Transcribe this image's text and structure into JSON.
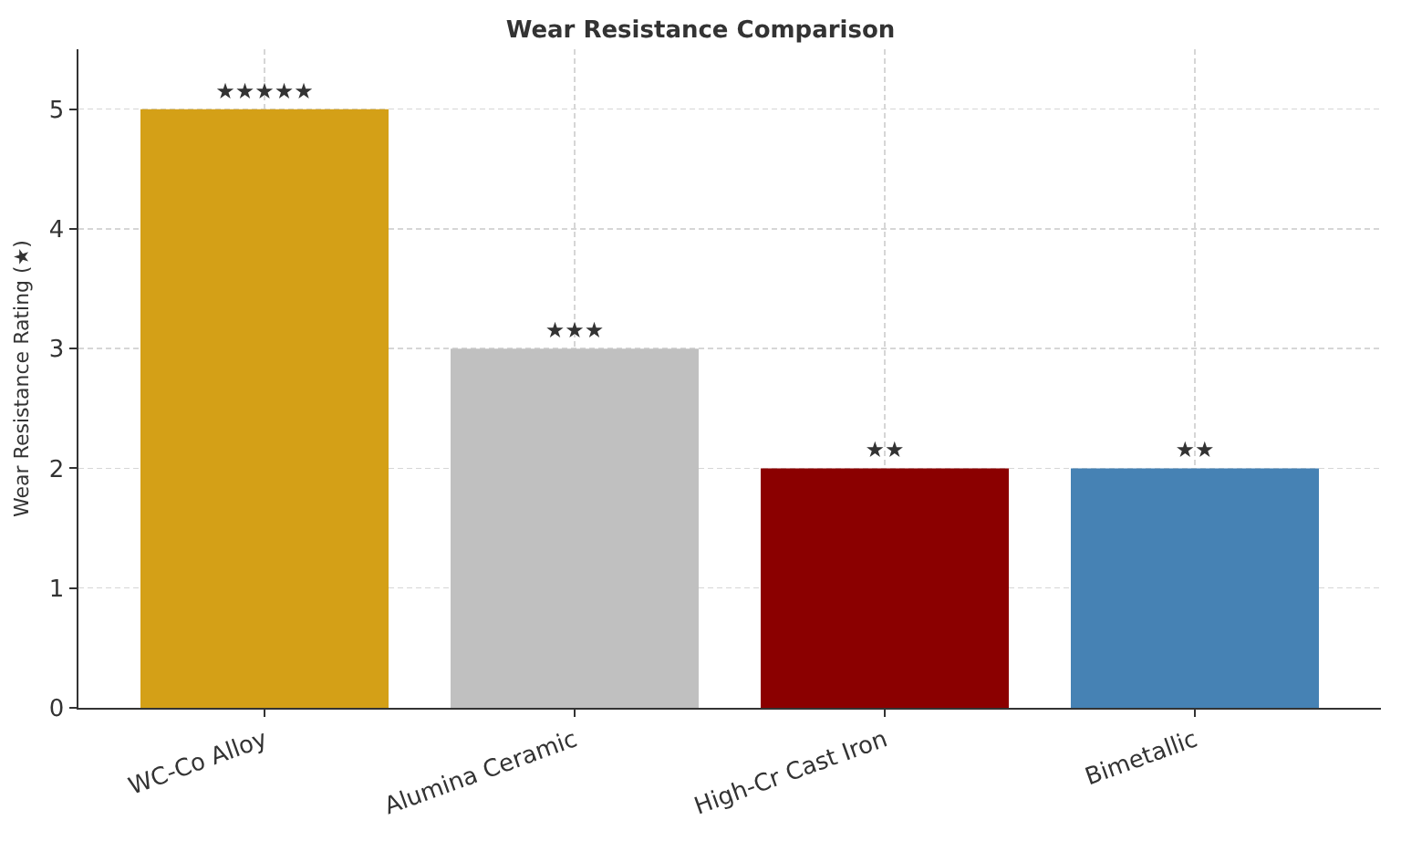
{
  "chart_data": {
    "type": "bar",
    "title": "Wear Resistance Comparison",
    "ylabel": "Wear Resistance Rating (★)",
    "categories": [
      "WC-Co Alloy",
      "Alumina Ceramic",
      "High-Cr Cast Iron",
      "Bimetallic"
    ],
    "values": [
      5,
      3,
      2,
      2
    ],
    "colors": [
      "#d4a017",
      "#c0c0c0",
      "#8b0000",
      "#4682b4"
    ],
    "value_labels": [
      "★★★★★",
      "★★★",
      "★★",
      "★★"
    ],
    "ylim": [
      0,
      5.5
    ],
    "yticks": [
      0,
      1,
      2,
      3,
      4,
      5
    ],
    "grid": true
  }
}
